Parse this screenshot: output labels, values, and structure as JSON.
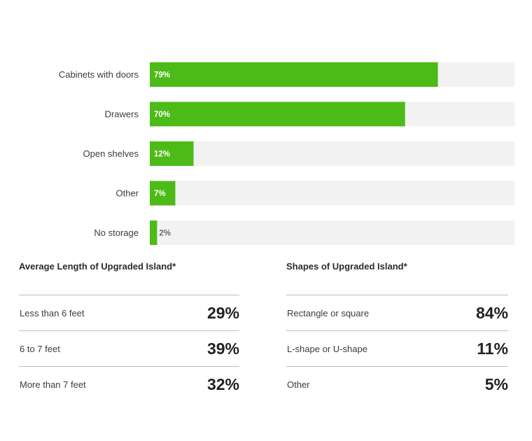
{
  "colors": {
    "bar": "#4cbb17",
    "track": "#f2f2f2",
    "label_on_bar": "#ffffff",
    "label_off_bar": "#6b6b6b"
  },
  "chart_data": [
    {
      "type": "bar",
      "orientation": "horizontal",
      "categories": [
        "Cabinets with doors",
        "Drawers",
        "Open shelves",
        "Other",
        "No storage"
      ],
      "values": [
        79,
        70,
        12,
        7,
        2
      ],
      "value_labels": [
        "79%",
        "70%",
        "12%",
        "7%",
        "2%"
      ],
      "xlim": [
        0,
        100
      ],
      "grid": false,
      "legend": "none"
    },
    {
      "type": "table",
      "title": "Average Length of Upgraded Island*",
      "rows": [
        {
          "label": "Less than 6 feet",
          "value": "29%"
        },
        {
          "label": "6 to 7 feet",
          "value": "39%"
        },
        {
          "label": "More than 7 feet",
          "value": "32%"
        }
      ]
    },
    {
      "type": "table",
      "title": "Shapes of Upgraded Island*",
      "rows": [
        {
          "label": "Rectangle or square",
          "value": "84%"
        },
        {
          "label": "L-shape or U-shape",
          "value": "11%"
        },
        {
          "label": "Other",
          "value": "5%"
        }
      ]
    }
  ]
}
